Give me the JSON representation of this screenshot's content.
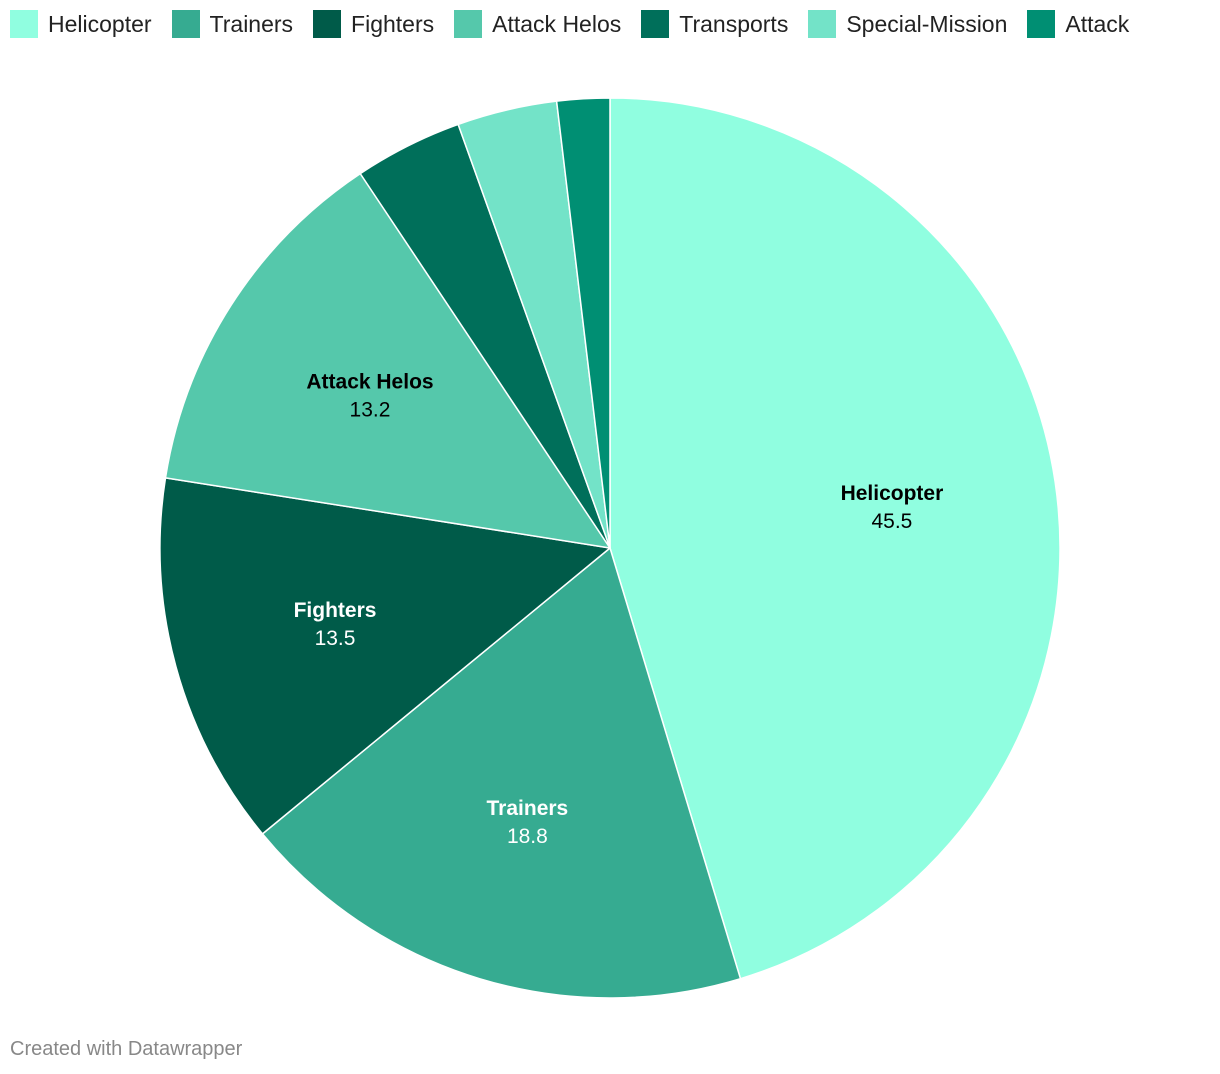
{
  "chart_data": {
    "type": "pie",
    "title": "",
    "start_angle_deg": 0,
    "direction": "clockwise",
    "legend_position": "top",
    "slices": [
      {
        "name": "Helicopter",
        "value": 45.5,
        "color": "#90fee0",
        "label_shown": true,
        "label_color": "#000000"
      },
      {
        "name": "Trainers",
        "value": 18.8,
        "color": "#36ab91",
        "label_shown": true,
        "label_color": "#ffffff"
      },
      {
        "name": "Fighters",
        "value": 13.5,
        "color": "#005b49",
        "label_shown": true,
        "label_color": "#ffffff"
      },
      {
        "name": "Attack Helos",
        "value": 13.2,
        "color": "#55c8ab",
        "label_shown": true,
        "label_color": "#000000"
      },
      {
        "name": "Transports",
        "value": 3.9,
        "color": "#006f5a",
        "label_shown": false,
        "label_color": "#ffffff"
      },
      {
        "name": "Special-Mission",
        "value": 3.6,
        "color": "#73e3c8",
        "label_shown": false,
        "label_color": "#000000"
      },
      {
        "name": "Attack",
        "value": 1.9,
        "color": "#008f73",
        "label_shown": false,
        "label_color": "#ffffff"
      }
    ]
  },
  "footer": {
    "credit": "Created with Datawrapper"
  }
}
